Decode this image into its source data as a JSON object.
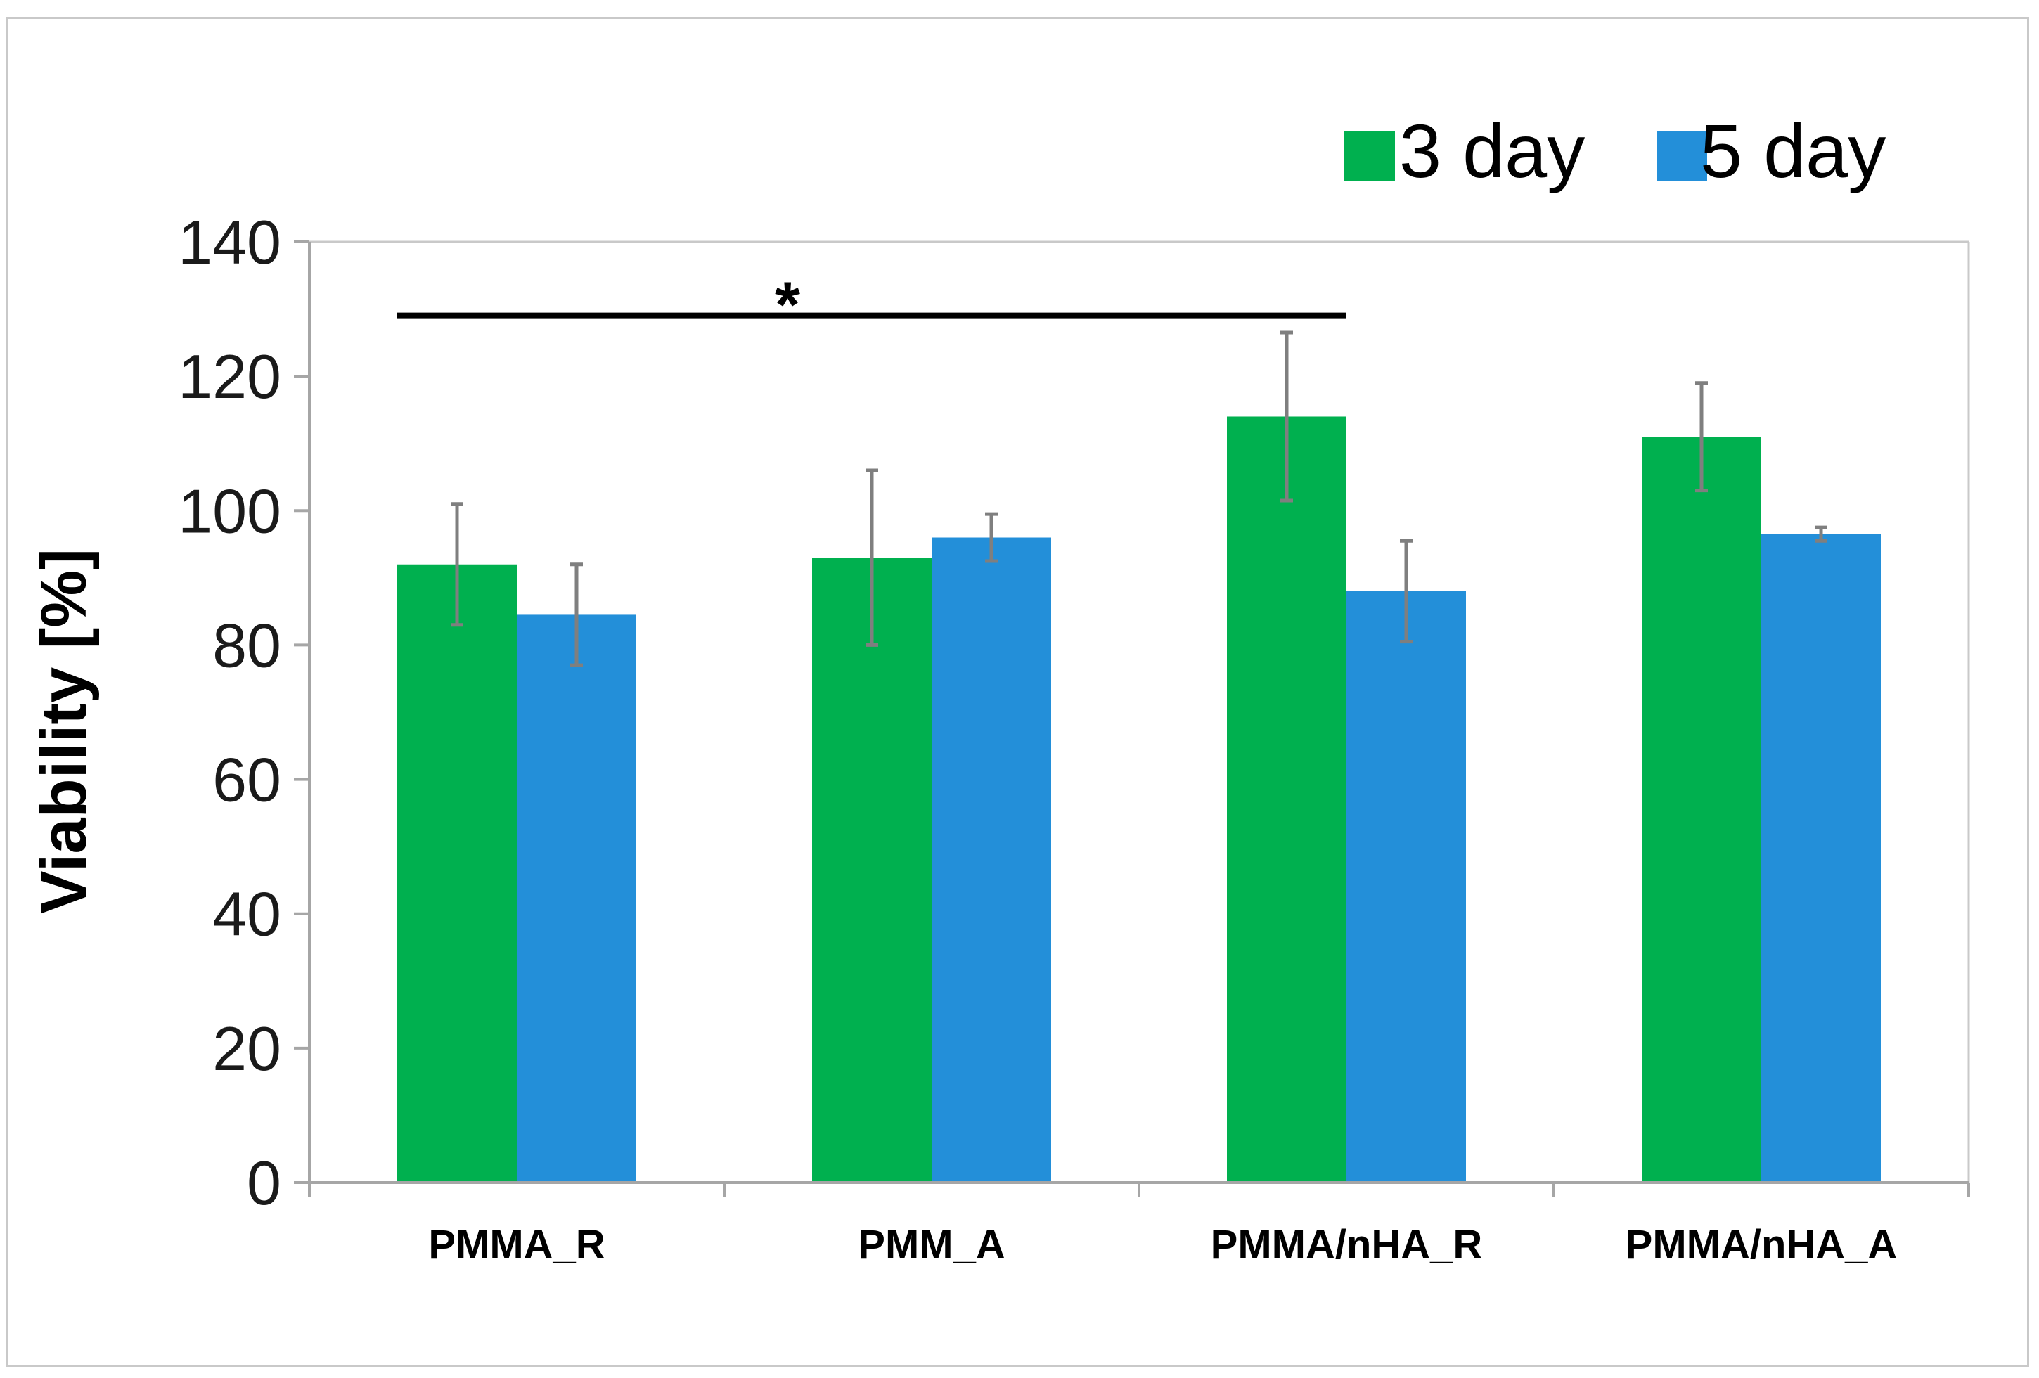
{
  "chart_data": {
    "type": "bar",
    "title": "",
    "xlabel": "",
    "ylabel": "Viability [%]",
    "ylim": [
      0,
      140
    ],
    "yticks": [
      0,
      20,
      40,
      60,
      80,
      100,
      120,
      140
    ],
    "grid": false,
    "legend_position": "top-right",
    "categories": [
      "PMMA_R",
      "PMM_A",
      "PMMA/nHA_R",
      "PMMA/nHA_A"
    ],
    "series": [
      {
        "name": "3 day",
        "color": "#00b04f",
        "values": [
          92,
          93,
          114,
          111
        ],
        "errors": [
          9,
          13,
          12.5,
          8
        ]
      },
      {
        "name": "5 day",
        "color": "#238fd9",
        "values": [
          84.5,
          96,
          88,
          96.5
        ],
        "errors": [
          7.5,
          3.5,
          7.5,
          1
        ]
      }
    ],
    "error_bar_color": "#7f7f7f",
    "significance": {
      "label": "*",
      "from_category": "PMMA_R",
      "to_category": "PMMA/nHA_R",
      "y": 129
    }
  }
}
